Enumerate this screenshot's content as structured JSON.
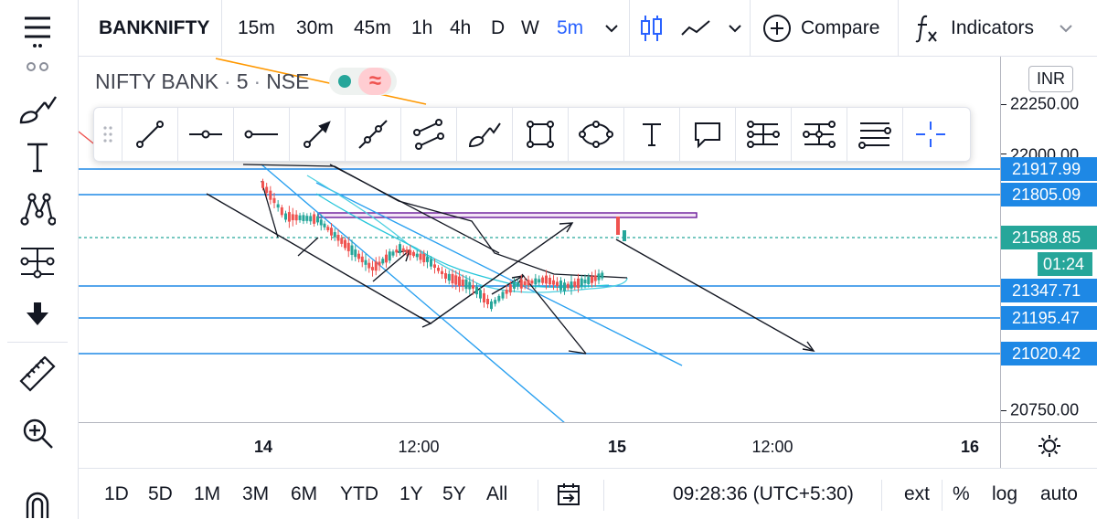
{
  "symbol": "BANKNIFTY",
  "timeframes": [
    "15m",
    "30m",
    "45m",
    "1h",
    "4h",
    "D",
    "W",
    "5m"
  ],
  "active_timeframe": "5m",
  "compare_label": "Compare",
  "indicators_label": "Indicators",
  "legend": {
    "name": "NIFTY BANK",
    "interval": "5",
    "exchange": "NSE"
  },
  "currency": "INR",
  "price_axis": {
    "labels": [
      "22250.00",
      "22000.00",
      "20750.00"
    ],
    "tags": [
      {
        "value": "21917.99",
        "color": "#1e88e5"
      },
      {
        "value": "21805.09",
        "color": "#1e88e5"
      },
      {
        "value": "21588.85",
        "color": "#26a69a"
      },
      {
        "value": "21347.71",
        "color": "#1e88e5"
      },
      {
        "value": "21195.47",
        "color": "#1e88e5"
      },
      {
        "value": "21020.42",
        "color": "#1e88e5"
      }
    ],
    "countdown": "01:24"
  },
  "time_axis": [
    "14",
    "12:00",
    "15",
    "12:00",
    "16"
  ],
  "ranges": [
    "1D",
    "5D",
    "1M",
    "3M",
    "6M",
    "YTD",
    "1Y",
    "5Y",
    "All"
  ],
  "clock": "09:28:36 (UTC+5:30)",
  "scale_options": [
    "ext",
    "%",
    "log",
    "auto"
  ],
  "colors": {
    "accent": "#2962ff",
    "up_candle": "#26a69a",
    "down_candle": "#ef5350",
    "hline": "#1e88e5",
    "rectangle": "#9c27b0"
  },
  "chart_data": {
    "type": "candlestick",
    "symbol": "NIFTY BANK",
    "interval": "5",
    "horizontal_levels": [
      21917.99,
      21805.09,
      21347.71,
      21195.47,
      21020.42
    ],
    "last_price": 21588.85,
    "ylim": [
      20700,
      22320
    ]
  }
}
